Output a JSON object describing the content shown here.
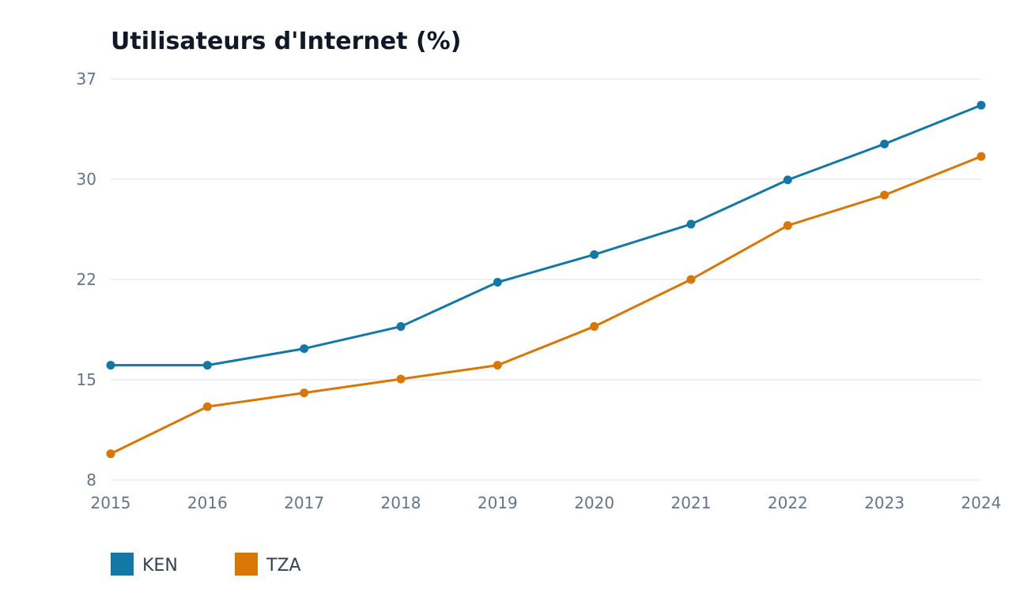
{
  "chart_data": {
    "type": "line",
    "title": "Utilisateurs d'Internet (%)",
    "x": [
      "2015",
      "2016",
      "2017",
      "2018",
      "2019",
      "2020",
      "2021",
      "2022",
      "2023",
      "2024"
    ],
    "y_ticks": [
      "37",
      "30",
      "22",
      "15",
      "8"
    ],
    "ylim": [
      8,
      37
    ],
    "grid": true,
    "legend_position": "bottom-left",
    "series": [
      {
        "name": "KEN",
        "color": "#1378a6",
        "values": [
          16.3,
          16.3,
          17.5,
          19.1,
          22.3,
          24.3,
          26.5,
          29.7,
          32.3,
          35.1
        ]
      },
      {
        "name": "TZA",
        "color": "#d97706",
        "values": [
          9.9,
          13.3,
          14.3,
          15.3,
          16.3,
          19.1,
          22.5,
          26.4,
          28.6,
          31.4
        ]
      }
    ]
  }
}
